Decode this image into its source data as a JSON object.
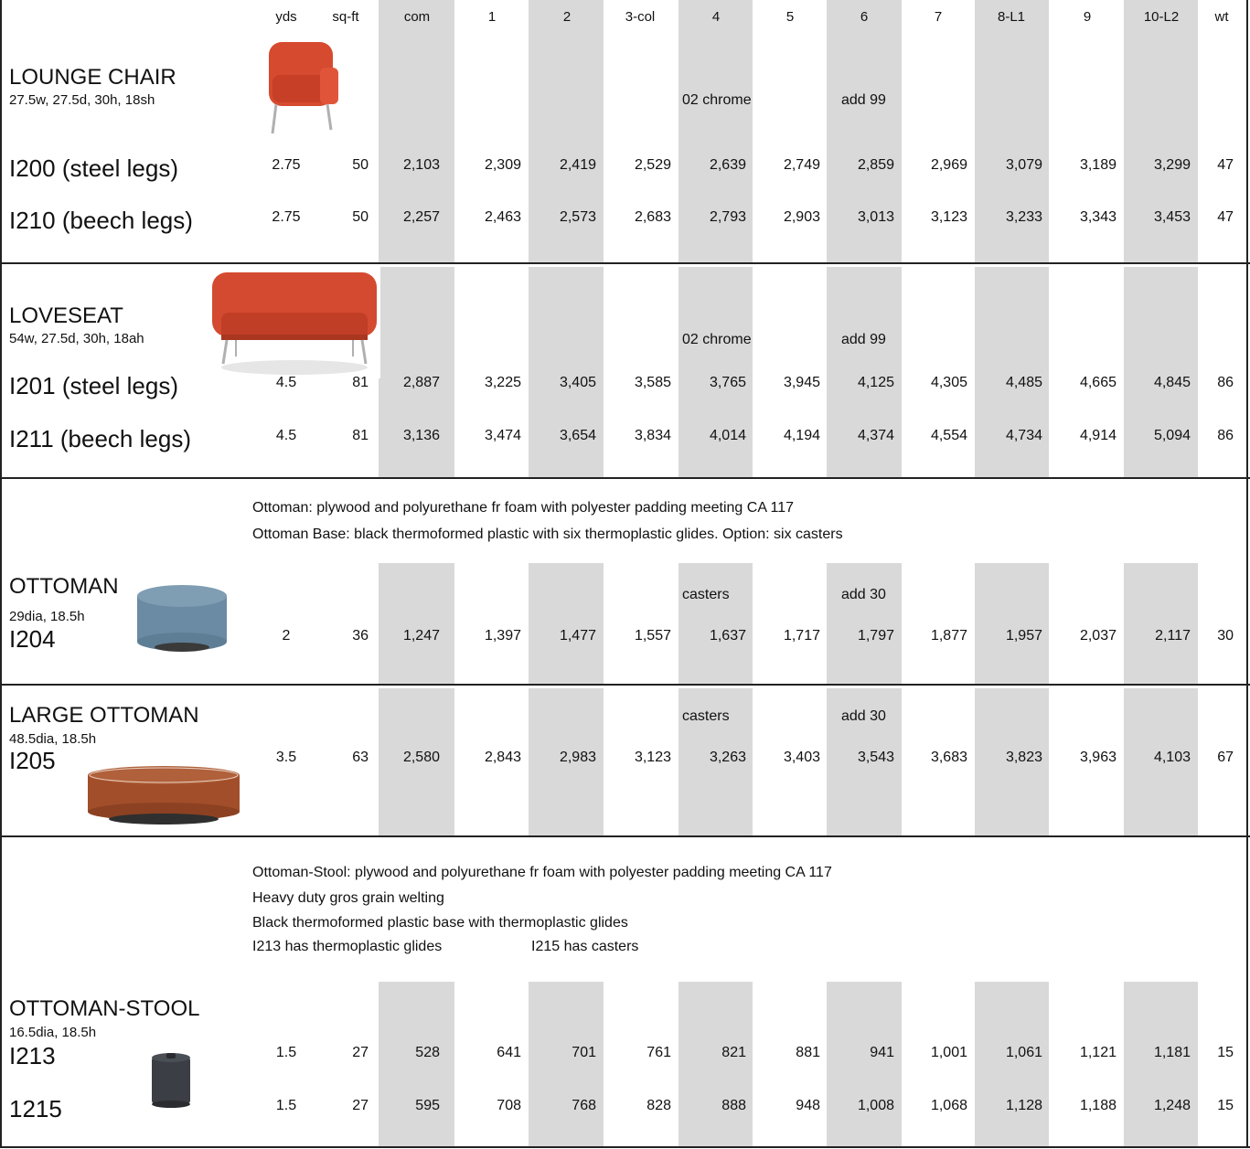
{
  "columns": {
    "yds": "yds",
    "sqft": "sq-ft",
    "com": "com",
    "g1": "1",
    "g2": "2",
    "g3": "3-col",
    "g4": "4",
    "g5": "5",
    "g6": "6",
    "g7": "7",
    "g8": "8-L1",
    "g9": "9",
    "g10": "10-L2",
    "wt": "wt"
  },
  "lounge": {
    "title": "LOUNGE CHAIR",
    "dims": "27.5w, 27.5d, 30h, 18sh",
    "opt_a": "02 chrome",
    "opt_b": "add 99",
    "rows": [
      {
        "name": "I200 (steel legs)",
        "v": [
          "2.75",
          "50",
          "2,103",
          "2,309",
          "2,419",
          "2,529",
          "2,639",
          "2,749",
          "2,859",
          "2,969",
          "3,079",
          "3,189",
          "3,299",
          "47"
        ]
      },
      {
        "name": "I210 (beech legs)",
        "v": [
          "2.75",
          "50",
          "2,257",
          "2,463",
          "2,573",
          "2,683",
          "2,793",
          "2,903",
          "3,013",
          "3,123",
          "3,233",
          "3,343",
          "3,453",
          "47"
        ]
      }
    ]
  },
  "loveseat": {
    "title": "LOVESEAT",
    "dims": "54w, 27.5d, 30h, 18ah",
    "opt_a": "02 chrome",
    "opt_b": "add 99",
    "rows": [
      {
        "name": "I201 (steel legs)",
        "v": [
          "4.5",
          "81",
          "2,887",
          "3,225",
          "3,405",
          "3,585",
          "3,765",
          "3,945",
          "4,125",
          "4,305",
          "4,485",
          "4,665",
          "4,845",
          "86"
        ]
      },
      {
        "name": "I211 (beech  legs)",
        "v": [
          "4.5",
          "81",
          "3,136",
          "3,474",
          "3,654",
          "3,834",
          "4,014",
          "4,194",
          "4,374",
          "4,554",
          "4,734",
          "4,914",
          "5,094",
          "86"
        ]
      }
    ]
  },
  "ottoman_notes": [
    "Ottoman:  plywood and polyurethane fr foam with polyester padding meeting CA 117",
    "Ottoman Base:  black thermoformed plastic with six thermoplastic glides.   Option:  six casters"
  ],
  "ottoman": {
    "title": "OTTOMAN",
    "dims": "29dia, 18.5h",
    "opt_a": "casters",
    "opt_b": "add 30",
    "rows": [
      {
        "name": "I204",
        "v": [
          "2",
          "36",
          "1,247",
          "1,397",
          "1,477",
          "1,557",
          "1,637",
          "1,717",
          "1,797",
          "1,877",
          "1,957",
          "2,037",
          "2,117",
          "30"
        ]
      }
    ]
  },
  "large_ottoman": {
    "title": "LARGE OTTOMAN",
    "dims": "48.5dia, 18.5h",
    "opt_a": "casters",
    "opt_b": "add 30",
    "rows": [
      {
        "name": "I205",
        "v": [
          "3.5",
          "63",
          "2,580",
          "2,843",
          "2,983",
          "3,123",
          "3,263",
          "3,403",
          "3,543",
          "3,683",
          "3,823",
          "3,963",
          "4,103",
          "67"
        ]
      }
    ]
  },
  "stool_notes": [
    "Ottoman-Stool:  plywood and polyurethane fr foam with polyester padding meeting CA 117",
    "Heavy duty gros grain welting",
    "Black thermoformed plastic base with thermoplastic glides",
    "I213 has thermoplastic glides",
    "I215 has casters"
  ],
  "stool": {
    "title": "OTTOMAN-STOOL",
    "dims": "16.5dia, 18.5h",
    "rows": [
      {
        "name": "I213",
        "v": [
          "1.5",
          "27",
          "528",
          "641",
          "701",
          "761",
          "821",
          "881",
          "941",
          "1,001",
          "1,061",
          "1,121",
          "1,181",
          "15"
        ]
      },
      {
        "name": "1215",
        "v": [
          "1.5",
          "27",
          "595",
          "708",
          "768",
          "828",
          "888",
          "948",
          "1,008",
          "1,068",
          "1,128",
          "1,188",
          "1,248",
          "15"
        ]
      }
    ]
  },
  "colors": {
    "band": "#d9d9d9",
    "chair": "#d9492f",
    "ottoman": "#6f8fa6",
    "large_ottoman": "#a4502c",
    "stool": "#3a3d42"
  },
  "icons": [
    "lounge-chair-image",
    "loveseat-image",
    "ottoman-image",
    "large-ottoman-image",
    "stool-image"
  ]
}
